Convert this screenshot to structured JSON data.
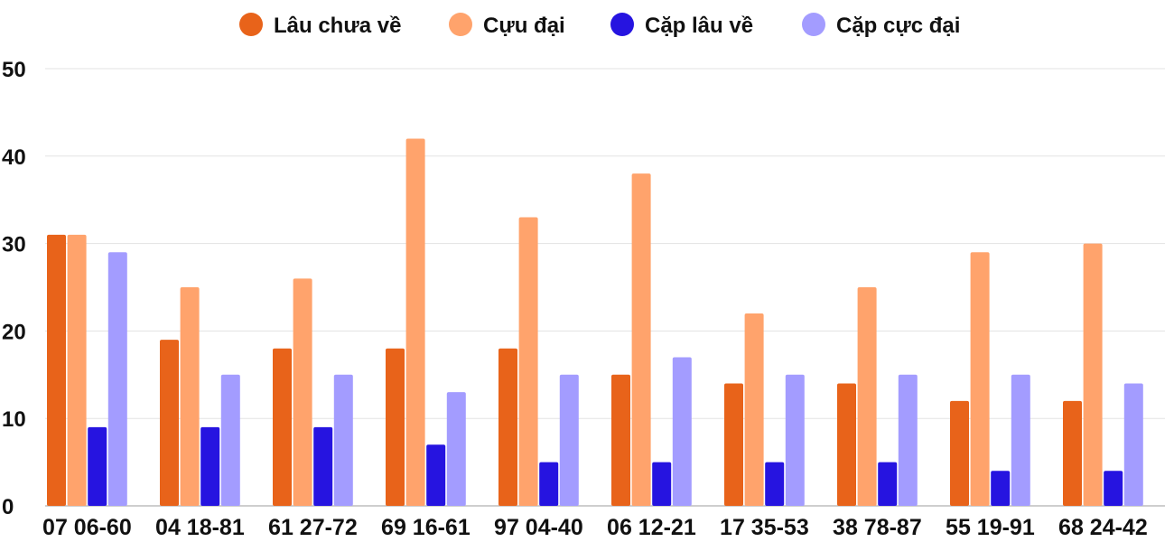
{
  "chart_data": {
    "type": "bar",
    "categories": [
      "07 06-60",
      "04 18-81",
      "61 27-72",
      "69 16-61",
      "97 04-40",
      "06 12-21",
      "17 35-53",
      "38 78-87",
      "55 19-91",
      "68 24-42"
    ],
    "series": [
      {
        "name": "Lâu chưa về",
        "color": "#e8631a",
        "values": [
          31,
          19,
          18,
          18,
          18,
          15,
          14,
          14,
          12,
          12
        ]
      },
      {
        "name": "Cựu đại",
        "color": "#ffa36c",
        "values": [
          31,
          25,
          26,
          42,
          33,
          38,
          22,
          25,
          29,
          30
        ]
      },
      {
        "name": "Cặp lâu về",
        "color": "#2614e0",
        "values": [
          9,
          9,
          9,
          7,
          5,
          5,
          5,
          5,
          4,
          4
        ]
      },
      {
        "name": "Cặp cực đại",
        "color": "#a39cff",
        "values": [
          29,
          15,
          15,
          13,
          15,
          17,
          15,
          15,
          15,
          14
        ]
      }
    ],
    "y_ticks": [
      "0",
      "10",
      "20",
      "30",
      "40",
      "50"
    ],
    "ylim": [
      0,
      50
    ],
    "grid": true,
    "legend_position": "top-center"
  }
}
